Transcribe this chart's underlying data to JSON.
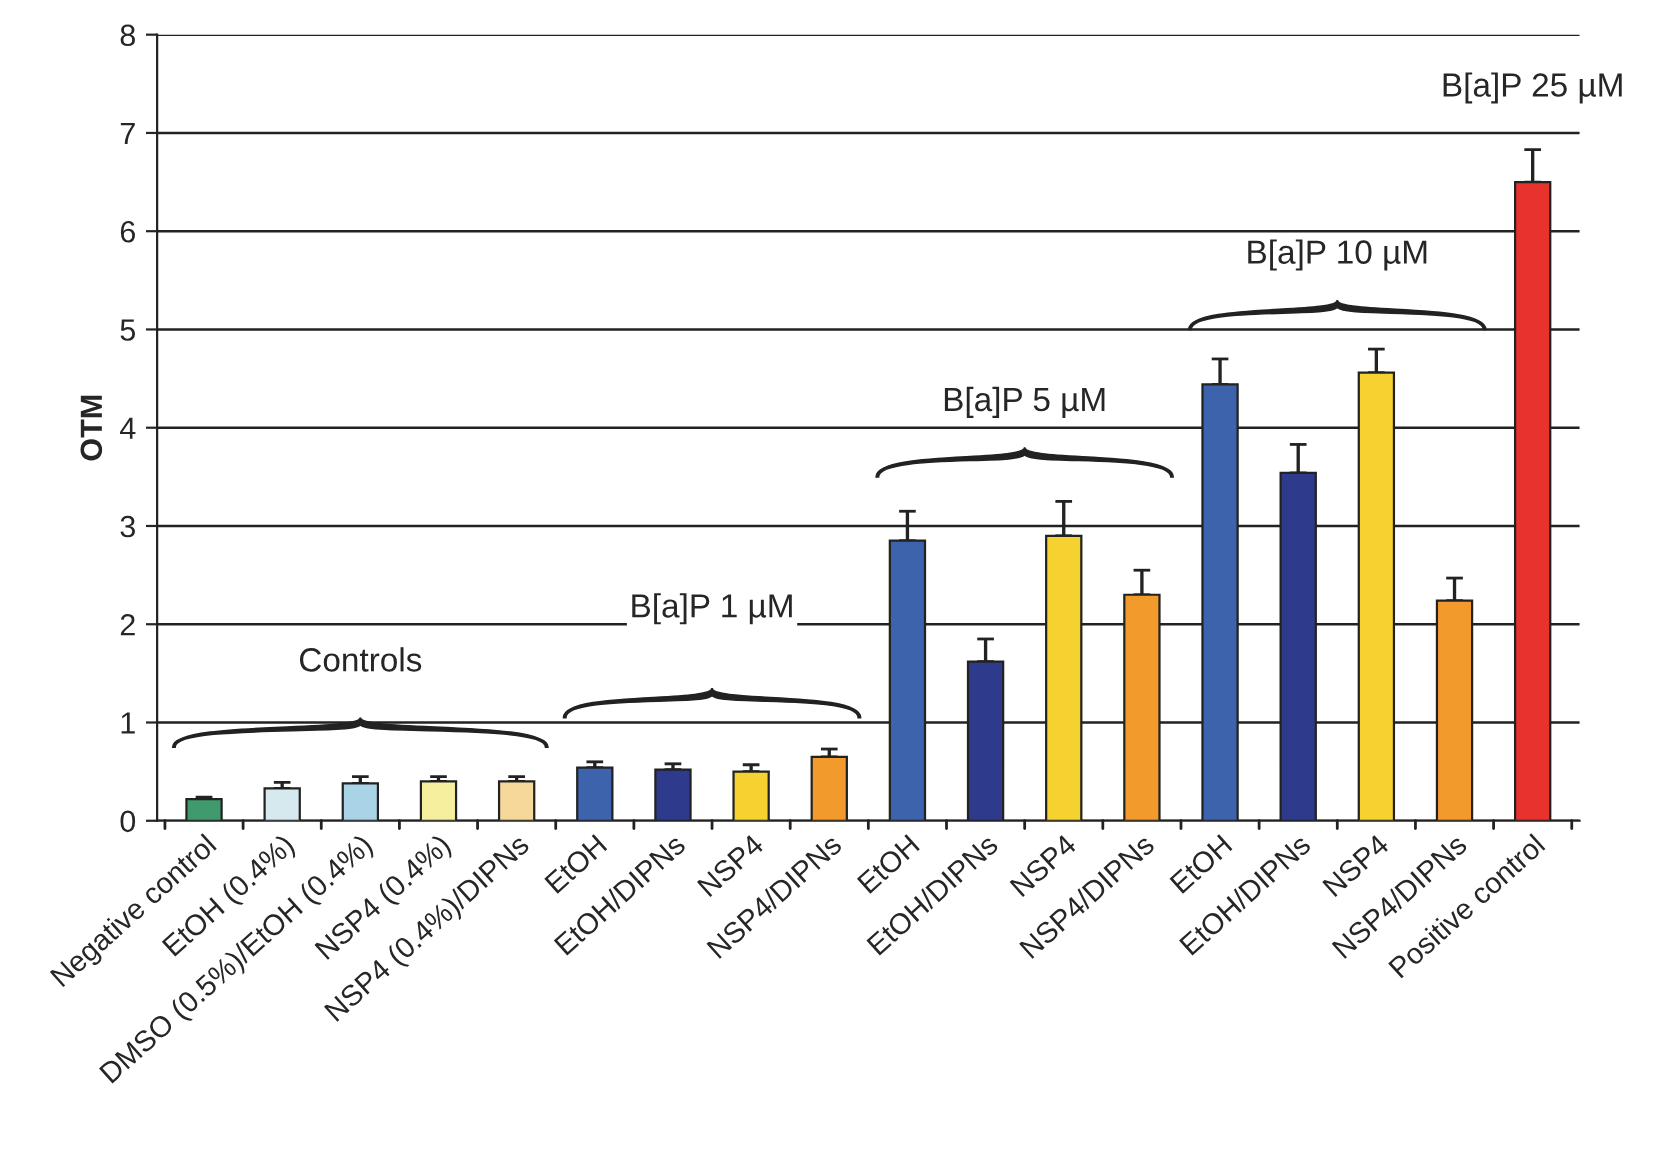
{
  "chart_data": {
    "type": "bar",
    "ylabel": "OTM",
    "categories": [
      "Negative control",
      "EtOH (0.4%)",
      "DMSO (0.5%)/EtOH (0.4%)",
      "NSP4 (0.4%)",
      "NSP4 (0.4%)/DIPNs",
      "EtOH",
      "EtOH/DIPNs",
      "NSP4",
      "NSP4/DIPNs",
      "EtOH",
      "EtOH/DIPNs",
      "NSP4",
      "NSP4/DIPNs",
      "EtOH",
      "EtOH/DIPNs",
      "NSP4",
      "NSP4/DIPNs",
      "Positive control"
    ],
    "values": [
      0.22,
      0.33,
      0.38,
      0.4,
      0.4,
      0.54,
      0.52,
      0.5,
      0.65,
      2.85,
      1.62,
      2.9,
      2.3,
      4.44,
      3.54,
      4.56,
      2.24,
      6.5
    ],
    "errors": [
      0.02,
      0.06,
      0.07,
      0.05,
      0.05,
      0.06,
      0.06,
      0.07,
      0.08,
      0.3,
      0.23,
      0.35,
      0.25,
      0.26,
      0.29,
      0.24,
      0.23,
      0.33
    ],
    "colors": [
      "#3f9a6e",
      "#d6e9ef",
      "#a9d3e6",
      "#f6ef9e",
      "#f6d99a",
      "#3d63ad",
      "#2e3a8c",
      "#f5d22f",
      "#f39a2c",
      "#3d63ad",
      "#2e3a8c",
      "#f5d22f",
      "#f39a2c",
      "#3d63ad",
      "#2e3a8c",
      "#f5d22f",
      "#f39a2c",
      "#e8322e"
    ],
    "ylim": [
      0,
      8
    ],
    "yticks": [
      0,
      1,
      2,
      3,
      4,
      5,
      6,
      7,
      8
    ],
    "grid": "y",
    "annotations": [
      "Controls",
      "B[a]P 1 µM",
      "B[a]P 5 µM",
      "B[a]P 10 µM",
      "B[a]P 25 µM"
    ]
  }
}
